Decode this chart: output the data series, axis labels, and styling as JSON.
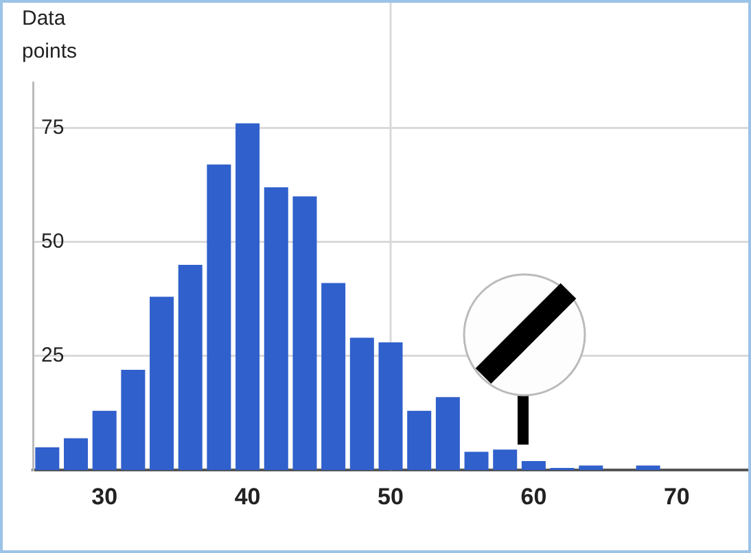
{
  "chart_data": {
    "type": "histogram",
    "ylabel": "Data points",
    "bins": [
      25,
      27,
      29,
      31,
      33,
      35,
      37,
      39,
      41,
      43,
      45,
      47,
      49,
      51,
      53,
      55,
      57,
      59,
      61,
      63,
      65,
      67,
      69,
      71,
      73,
      75
    ],
    "values": [
      5,
      7,
      13,
      22,
      38,
      45,
      67,
      76,
      62,
      60,
      41,
      29,
      28,
      13,
      16,
      4,
      4.5,
      2,
      0.5,
      1,
      0,
      1,
      0,
      0,
      0
    ],
    "color": "#3060cc",
    "xlim": [
      25,
      75
    ],
    "xticks": [
      30,
      40,
      50,
      60,
      70
    ],
    "ylim": [
      0,
      85
    ],
    "yticks": [
      25,
      50,
      75
    ],
    "grid": "y",
    "ref_lines": [
      {
        "axis": "x",
        "value": 50,
        "color": "#d9d9d9"
      }
    ]
  }
}
